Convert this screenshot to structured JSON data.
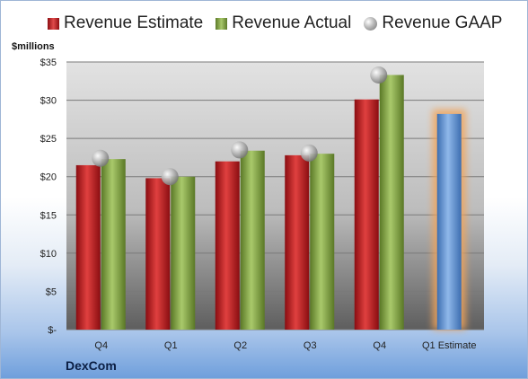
{
  "legend": {
    "estimate": "Revenue Estimate",
    "actual": "Revenue Actual",
    "gaap": "Revenue GAAP"
  },
  "unit_label": "$millions",
  "company": "DexCom",
  "colors": {
    "estimate": "#c4161c",
    "actual": "#7f9e45",
    "gaap": "#a0a0a0",
    "forecast": "#5b8fd1",
    "forecast_glow": "#f2a45a"
  },
  "chart_data": {
    "type": "bar",
    "categories": [
      "Q4",
      "Q1",
      "Q2",
      "Q3",
      "Q4",
      "Q1 Estimate"
    ],
    "series": [
      {
        "name": "Revenue Estimate",
        "values": [
          21.5,
          19.8,
          22.0,
          22.8,
          30.1,
          28.2
        ]
      },
      {
        "name": "Revenue Actual",
        "values": [
          22.3,
          20.0,
          23.4,
          23.0,
          33.3,
          null
        ]
      },
      {
        "name": "Revenue GAAP",
        "values": [
          22.4,
          20.0,
          23.5,
          23.1,
          33.3,
          null
        ]
      }
    ],
    "ylim": [
      0,
      35
    ],
    "yticks": [
      0,
      5,
      10,
      15,
      20,
      25,
      30,
      35
    ],
    "ytick_labels": [
      "$-",
      "$5",
      "$10",
      "$15",
      "$20",
      "$25",
      "$30",
      "$35"
    ],
    "ylabel": "$millions",
    "grid": true,
    "legend_position": "top"
  }
}
